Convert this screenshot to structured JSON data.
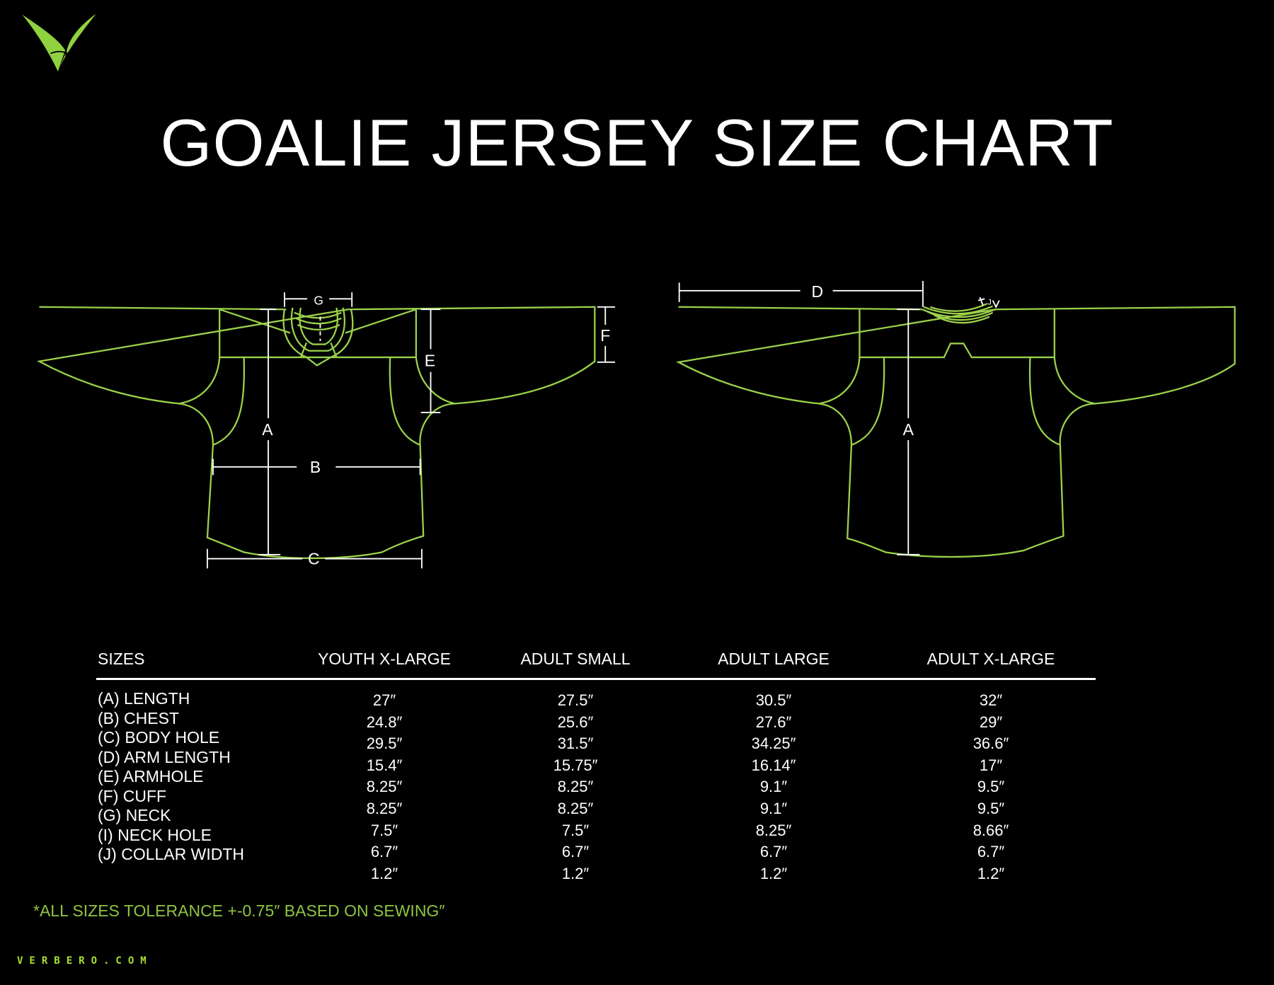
{
  "title": "GOALIE JERSEY SIZE CHART",
  "brand": {
    "logo_icon": "verbero-v-logo",
    "website": "VERBERO.COM",
    "accent": "#8fd13f"
  },
  "diagram_labels": {
    "a": "A",
    "b": "B",
    "c": "C",
    "d": "D",
    "e": "E",
    "f": "F",
    "g": "G",
    "i": "I",
    "j": "J"
  },
  "table": {
    "headers": [
      "SIZES",
      "YOUTH X-LARGE",
      "ADULT SMALL",
      "ADULT LARGE",
      "ADULT X-LARGE"
    ],
    "rows": [
      {
        "label": "(A) LENGTH",
        "values": [
          "27″",
          "27.5″",
          "30.5″",
          "32″"
        ]
      },
      {
        "label": "(B) CHEST",
        "values": [
          "24.8″",
          "25.6″",
          "27.6″",
          "29″"
        ]
      },
      {
        "label": "(C) BODY HOLE",
        "values": [
          "29.5″",
          "31.5″",
          "34.25″",
          "36.6″"
        ]
      },
      {
        "label": "(D) ARM LENGTH",
        "values": [
          "15.4″",
          "15.75″",
          "16.14″",
          "17″"
        ]
      },
      {
        "label": "(E) ARMHOLE",
        "values": [
          "8.25″",
          "8.25″",
          "9.1″",
          "9.5″"
        ]
      },
      {
        "label": "(F) CUFF",
        "values": [
          "8.25″",
          "8.25″",
          "9.1″",
          "9.5″"
        ]
      },
      {
        "label": "(G) NECK",
        "values": [
          "7.5″",
          "7.5″",
          "8.25″",
          "8.66″"
        ]
      },
      {
        "label": "(I) NECK HOLE",
        "values": [
          "6.7″",
          "6.7″",
          "6.7″",
          "6.7″"
        ]
      },
      {
        "label": "(J) COLLAR WIDTH",
        "values": [
          "1.2″",
          "1.2″",
          "1.2″",
          "1.2″"
        ]
      }
    ]
  },
  "note": "*ALL SIZES TOLERANCE +-0.75″ BASED ON SEWING″"
}
